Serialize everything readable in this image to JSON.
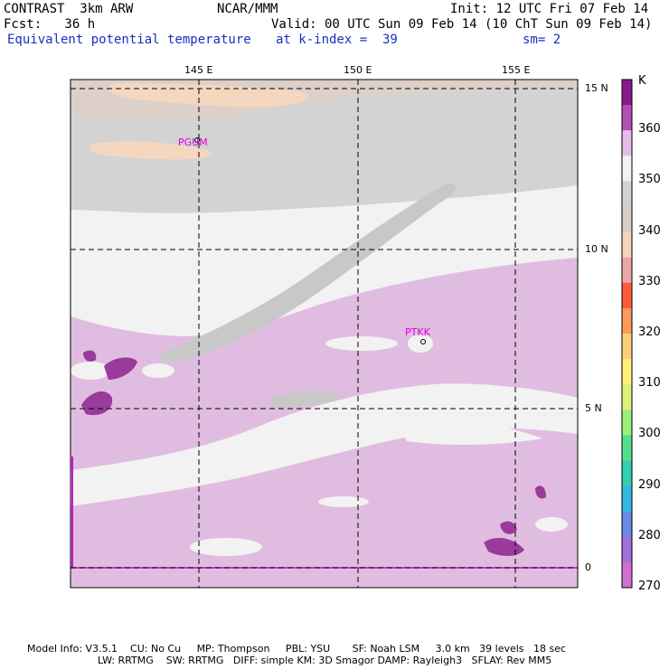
{
  "header": {
    "model": "CONTRAST  3km ARW",
    "org": "NCAR/MMM",
    "init": "Init: 12 UTC Fri 07 Feb 14",
    "fcst": "Fcst:   36 h",
    "valid": "Valid: 00 UTC Sun 09 Feb 14 (10 ChT Sun 09 Feb 14)",
    "field": "Equivalent potential temperature",
    "level": "at k-index =  39",
    "smooth": "sm= 2"
  },
  "map": {
    "lon_labels": [
      "145 E",
      "150 E",
      "155 E"
    ],
    "lat_labels": [
      "15 N",
      "10 N",
      "5 N",
      "0"
    ],
    "stations": [
      "PGUM",
      "PTKK"
    ]
  },
  "colorbar": {
    "unit": "K",
    "tick_labels": [
      "360",
      "350",
      "340",
      "330",
      "320",
      "310",
      "300",
      "290",
      "280",
      "270"
    ],
    "colors": [
      "#8c1a8c",
      "#b24fb2",
      "#e6bde6",
      "#f2f2f2",
      "#d2d2d2",
      "#d8ccc4",
      "#f5d5be",
      "#f0a6a6",
      "#ff5a3c",
      "#ff9a5a",
      "#ffd07a",
      "#fff07a",
      "#e0f07a",
      "#9cf07a",
      "#50e08a",
      "#33d0b0",
      "#33b8e0",
      "#6a8ae8",
      "#a070d8",
      "#d070d0"
    ]
  },
  "footer": {
    "line1": "Model Info: V3.5.1    CU: No Cu     MP: Thompson     PBL: YSU       SF: Noah LSM     3.0 km   39 levels   18 sec",
    "line2": "LW: RRTMG    SW: RRTMG   DIFF: simple KM: 3D Smagor DAMP: Rayleigh3   SFLAY: Rev MM5"
  }
}
